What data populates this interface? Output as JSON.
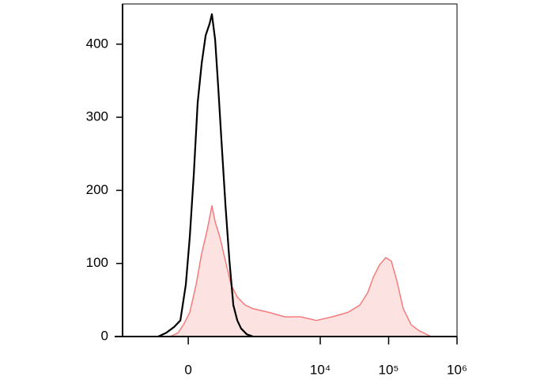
{
  "chart_data": {
    "type": "histogram-overlay",
    "xscale": "asinh",
    "xscale_cofactor": 235,
    "xlim": [
      -1060,
      1000000
    ],
    "xticks": [
      0,
      {
        "value": 10000,
        "label": "10⁴"
      },
      {
        "value": 100000,
        "label": "10⁵"
      },
      {
        "value": 1000000,
        "label": "10⁶"
      }
    ],
    "ylim": [
      0,
      455
    ],
    "yticks": [
      0,
      100,
      200,
      300,
      400
    ],
    "series": [
      {
        "color": "#f47c7c",
        "fill": "#fde2e2",
        "x": [
          -153,
          -83,
          -38,
          12,
          63,
          110,
          161,
          208,
          243,
          301,
          378,
          468,
          590,
          782,
          1029,
          1767,
          3017,
          5150,
          8770,
          14920,
          25400,
          37900,
          49400,
          59600,
          73700,
          91100,
          109700,
          132000,
          163700,
          213600,
          278700,
          416000
        ],
        "values": [
          0,
          5,
          16,
          33,
          71,
          114,
          146,
          179,
          157,
          136,
          103,
          71,
          54,
          43,
          38,
          33,
          27,
          27,
          22,
          27,
          33,
          43,
          60,
          81,
          98,
          108,
          103,
          76,
          38,
          16,
          8,
          0
        ]
      },
      {
        "color": "#000000",
        "x": [
          -280,
          -192,
          -117,
          -63,
          -19,
          12,
          44,
          76,
          110,
          146,
          184,
          208,
          243,
          280,
          322,
          378,
          441,
          510,
          590,
          677,
          827,
          1029
        ],
        "values": [
          0,
          5,
          13,
          22,
          71,
          136,
          222,
          320,
          374,
          412,
          428,
          441,
          406,
          341,
          266,
          179,
          103,
          43,
          22,
          11,
          3,
          0
        ]
      }
    ]
  }
}
